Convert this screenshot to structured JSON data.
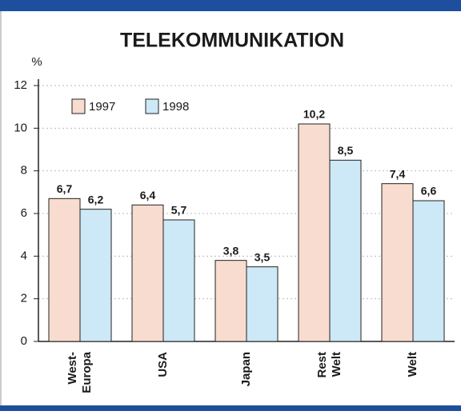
{
  "chart_data": {
    "type": "bar",
    "title": "TELEKOMMUNIKATION",
    "y_label": "%",
    "categories": [
      "West-\nEuropa",
      "USA",
      "Japan",
      "Rest\nWelt",
      "Welt"
    ],
    "series": [
      {
        "name": "1997",
        "color": "#f8dccf",
        "values": [
          6.7,
          6.4,
          3.8,
          10.2,
          7.4
        ],
        "value_labels": [
          "6,7",
          "6,4",
          "3,8",
          "10,2",
          "7,4"
        ]
      },
      {
        "name": "1998",
        "color": "#cde8f6",
        "values": [
          6.2,
          5.7,
          3.5,
          8.5,
          6.6
        ],
        "value_labels": [
          "6,2",
          "5,7",
          "3,5",
          "8,5",
          "6,6"
        ]
      }
    ],
    "ylim": [
      0,
      12
    ],
    "yticks": [
      0,
      2,
      4,
      6,
      8,
      10,
      12
    ],
    "grid": true
  }
}
